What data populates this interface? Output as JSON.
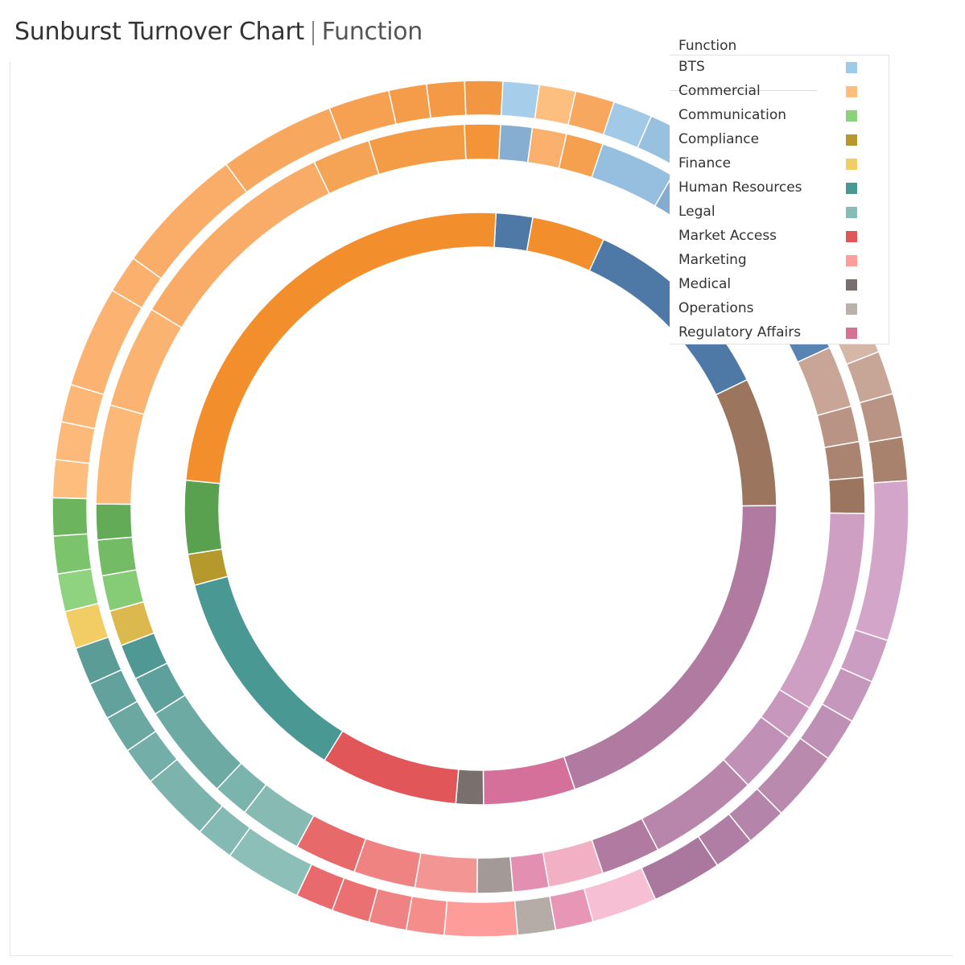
{
  "header": {
    "title": "Sunburst Turnover Chart",
    "separator": "|",
    "subtitle": "Function"
  },
  "legend": {
    "title": "Function",
    "items": [
      {
        "label": "BTS",
        "color": "#a0cbe8"
      },
      {
        "label": "Commercial",
        "color": "#ffbe7d"
      },
      {
        "label": "Communication",
        "color": "#8cd17d"
      },
      {
        "label": "Compliance",
        "color": "#b6992d"
      },
      {
        "label": "Finance",
        "color": "#f1ce63"
      },
      {
        "label": "Human Resources",
        "color": "#499894"
      },
      {
        "label": "Legal",
        "color": "#86bcb6"
      },
      {
        "label": "Market Access",
        "color": "#e15759"
      },
      {
        "label": "Marketing",
        "color": "#ff9d9a"
      },
      {
        "label": "Medical",
        "color": "#79706e"
      },
      {
        "label": "Operations",
        "color": "#bab0ac"
      },
      {
        "label": "Regulatory Affairs",
        "color": "#d37295"
      }
    ]
  },
  "chart_data": {
    "type": "sunburst",
    "title": "Sunburst Turnover Chart | Function",
    "start_angle_deg": -87,
    "rings": [
      {
        "level": "inner",
        "segments": [
          {
            "value": 2,
            "color": "#4e79a7"
          },
          {
            "value": 4,
            "color": "#f28e2b"
          },
          {
            "value": 11,
            "color": "#4e79a7"
          },
          {
            "value": 7,
            "color": "#9c755f"
          },
          {
            "value": 20,
            "color": "#b07aa1"
          },
          {
            "value": 5,
            "color": "#d4709a"
          },
          {
            "value": 1.5,
            "color": "#79706e"
          },
          {
            "value": 7.5,
            "color": "#e15759"
          },
          {
            "value": 12,
            "color": "#499894"
          },
          {
            "value": 1.7,
            "color": "#b6992d"
          },
          {
            "value": 4,
            "color": "#59a14f"
          },
          {
            "value": 24.3,
            "color": "#f28e2b"
          }
        ]
      },
      {
        "level": "middle",
        "segments": [
          {
            "value": 2.3,
            "color": "#86aed0"
          },
          {
            "value": 2.5,
            "color": "#fbb06d"
          },
          {
            "value": 2.7,
            "color": "#f5a04e"
          },
          {
            "value": 5.5,
            "color": "#96bfdf"
          },
          {
            "value": 7,
            "color": "#85acd0"
          },
          {
            "value": 5,
            "color": "#78a2c8"
          },
          {
            "value": 2.5,
            "color": "#6b97c1"
          },
          {
            "value": 2.5,
            "color": "#5883b3"
          },
          {
            "value": 4.5,
            "color": "#c8a596"
          },
          {
            "value": 2.6,
            "color": "#b99383"
          },
          {
            "value": 2.6,
            "color": "#ab8371"
          },
          {
            "value": 2.6,
            "color": "#9c755f"
          },
          {
            "value": 14.7,
            "color": "#cf9ec3"
          },
          {
            "value": 2.6,
            "color": "#c797bd"
          },
          {
            "value": 4.5,
            "color": "#c090b7"
          },
          {
            "value": 8,
            "color": "#b886ab"
          },
          {
            "value": 4.3,
            "color": "#b07aa1"
          },
          {
            "value": 4,
            "color": "#f2b0c4"
          },
          {
            "value": 2.6,
            "color": "#e38fb2"
          },
          {
            "value": 2.6,
            "color": "#a39a98"
          },
          {
            "value": 4.5,
            "color": "#f39593"
          },
          {
            "value": 4.5,
            "color": "#ef8381"
          },
          {
            "value": 4.5,
            "color": "#e8696a"
          },
          {
            "value": 4.5,
            "color": "#86bab3"
          },
          {
            "value": 2.6,
            "color": "#7bb3ad"
          },
          {
            "value": 7,
            "color": "#6eaaa4"
          },
          {
            "value": 2.9,
            "color": "#5ea19c"
          },
          {
            "value": 2.6,
            "color": "#4f9894"
          },
          {
            "value": 2.6,
            "color": "#dcb94f"
          },
          {
            "value": 2.6,
            "color": "#86cb76"
          },
          {
            "value": 2.6,
            "color": "#73bb64"
          },
          {
            "value": 2.6,
            "color": "#63ab56"
          },
          {
            "value": 7.2,
            "color": "#fbb877"
          },
          {
            "value": 7.5,
            "color": "#fbb372"
          },
          {
            "value": 16,
            "color": "#f8ac68"
          },
          {
            "value": 4.2,
            "color": "#f5a354"
          },
          {
            "value": 7,
            "color": "#f49c45"
          },
          {
            "value": 2.6,
            "color": "#f39439"
          }
        ]
      },
      {
        "level": "outer",
        "segments": [
          {
            "value": 2.5,
            "color": "#a6cdea"
          },
          {
            "value": 2.5,
            "color": "#fdbf80"
          },
          {
            "value": 2.7,
            "color": "#f8a85e"
          },
          {
            "value": 2.7,
            "color": "#a2c9e6"
          },
          {
            "value": 2.7,
            "color": "#98c0df"
          },
          {
            "value": 2.7,
            "color": "#8eb8da"
          },
          {
            "value": 2.7,
            "color": "#84b0d4"
          },
          {
            "value": 5,
            "color": "#78a6cc"
          },
          {
            "value": 3.5,
            "color": "#6d98c4"
          },
          {
            "value": 3.2,
            "color": "#5a88b8"
          },
          {
            "value": 3,
            "color": "#d5b7a8"
          },
          {
            "value": 3,
            "color": "#c8a697"
          },
          {
            "value": 3,
            "color": "#b99383"
          },
          {
            "value": 3,
            "color": "#a8826c"
          },
          {
            "value": 11,
            "color": "#d3a5c8"
          },
          {
            "value": 3,
            "color": "#cc9dc2"
          },
          {
            "value": 3,
            "color": "#c597bd"
          },
          {
            "value": 3,
            "color": "#be90b6"
          },
          {
            "value": 4.9,
            "color": "#b98aae"
          },
          {
            "value": 2.8,
            "color": "#b584aa"
          },
          {
            "value": 2.8,
            "color": "#b07ea5"
          },
          {
            "value": 4.8,
            "color": "#aa789f"
          },
          {
            "value": 4.5,
            "color": "#f7bfd4"
          },
          {
            "value": 2.6,
            "color": "#e896b6"
          },
          {
            "value": 2.6,
            "color": "#b5aba7"
          },
          {
            "value": 5,
            "color": "#fd9c99"
          },
          {
            "value": 2.6,
            "color": "#f58d8b"
          },
          {
            "value": 2.6,
            "color": "#ef8283"
          },
          {
            "value": 2.6,
            "color": "#eb7072"
          },
          {
            "value": 2.6,
            "color": "#e86a6c"
          },
          {
            "value": 5.3,
            "color": "#8cbfb8"
          },
          {
            "value": 2.6,
            "color": "#84bab3"
          },
          {
            "value": 4.8,
            "color": "#7cb4ad"
          },
          {
            "value": 2.6,
            "color": "#74aea8"
          },
          {
            "value": 2.6,
            "color": "#6ba8a2"
          },
          {
            "value": 2.6,
            "color": "#63a29c"
          },
          {
            "value": 2.6,
            "color": "#5b9c97"
          },
          {
            "value": 2.6,
            "color": "#f2cd65"
          },
          {
            "value": 2.6,
            "color": "#8fd27f"
          },
          {
            "value": 2.6,
            "color": "#7cc46c"
          },
          {
            "value": 2.6,
            "color": "#6cb55e"
          },
          {
            "value": 2.6,
            "color": "#fdbd7d"
          },
          {
            "value": 2.6,
            "color": "#fdb979"
          },
          {
            "value": 2.6,
            "color": "#fcb675"
          },
          {
            "value": 7,
            "color": "#fcb372"
          },
          {
            "value": 2.6,
            "color": "#fbb06d"
          },
          {
            "value": 9,
            "color": "#faad69"
          },
          {
            "value": 8,
            "color": "#f8a85e"
          },
          {
            "value": 4.2,
            "color": "#f6a152"
          },
          {
            "value": 2.6,
            "color": "#f59c4a"
          },
          {
            "value": 2.6,
            "color": "#f49a47"
          },
          {
            "value": 2.6,
            "color": "#f39641"
          }
        ]
      }
    ]
  }
}
